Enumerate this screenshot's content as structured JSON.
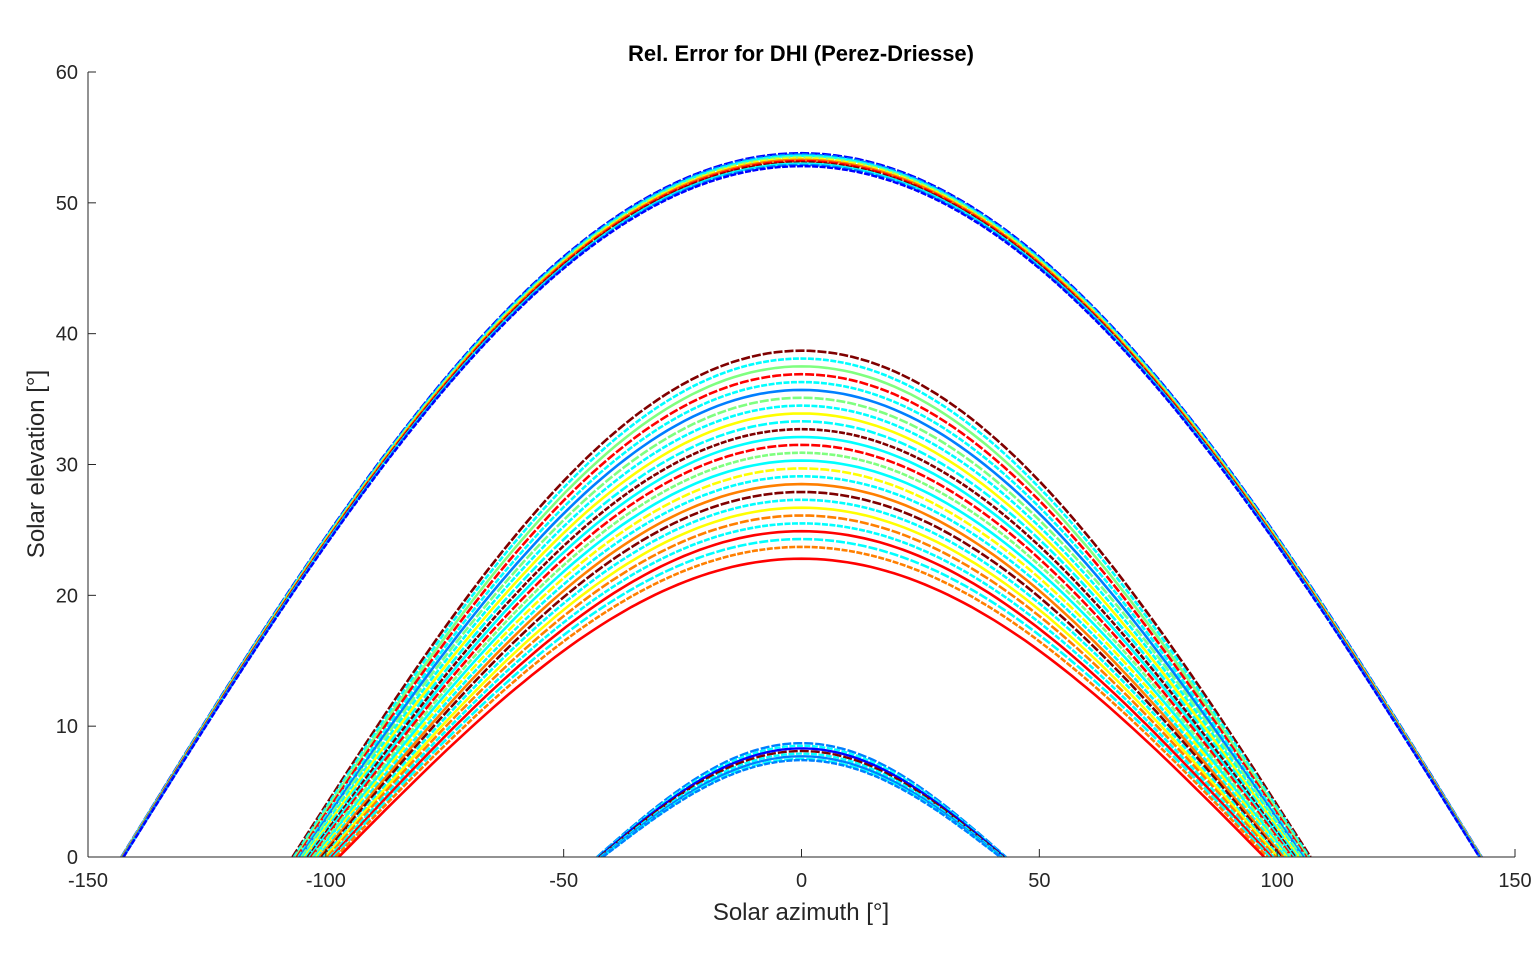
{
  "chart_data": {
    "type": "scatter",
    "title": "Rel. Error for DHI (Perez-Driesse)",
    "xlabel": "Solar azimuth [°]",
    "ylabel": "Solar elevation [°]",
    "xlim": [
      -150,
      150
    ],
    "ylim": [
      0,
      60
    ],
    "xticks": [
      -150,
      -100,
      -50,
      0,
      50,
      100,
      150
    ],
    "yticks": [
      0,
      10,
      20,
      30,
      40,
      50,
      60
    ],
    "grid": false,
    "colormap": "jet",
    "colors": [
      "#00007f",
      "#0000ff",
      "#007fff",
      "#00ffff",
      "#7fff7f",
      "#ffff00",
      "#ff7f00",
      "#ff0000",
      "#7f0000"
    ],
    "series": [
      {
        "max_elevation_range": [
          52.8,
          53.8
        ],
        "azimuth_end": 143,
        "bands": [
          {
            "peak": 53.8,
            "color": "#0000ff"
          },
          {
            "peak": 53.7,
            "color": "#007fff"
          },
          {
            "peak": 53.6,
            "color": "#00ffff"
          },
          {
            "peak": 53.5,
            "color": "#7fff7f"
          },
          {
            "peak": 53.4,
            "color": "#ffff00"
          },
          {
            "peak": 53.3,
            "color": "#ff7f00"
          },
          {
            "peak": 53.2,
            "color": "#ff0000"
          },
          {
            "peak": 53.1,
            "color": "#7f0000"
          },
          {
            "peak": 53.0,
            "color": "#00ffff"
          },
          {
            "peak": 52.9,
            "color": "#007fff"
          },
          {
            "peak": 52.8,
            "color": "#0000ff"
          }
        ]
      },
      {
        "max_elevation_range": [
          22.8,
          38.7
        ],
        "azimuth_end": 107,
        "bands": [
          {
            "peak": 38.7,
            "color": "#7f0000"
          },
          {
            "peak": 38.1,
            "color": "#00ffff"
          },
          {
            "peak": 37.5,
            "color": "#7fff7f"
          },
          {
            "peak": 36.9,
            "color": "#ff0000"
          },
          {
            "peak": 36.3,
            "color": "#00ffff"
          },
          {
            "peak": 35.7,
            "color": "#007fff"
          },
          {
            "peak": 35.1,
            "color": "#7fff7f"
          },
          {
            "peak": 34.5,
            "color": "#00ffff"
          },
          {
            "peak": 33.9,
            "color": "#ffff00"
          },
          {
            "peak": 33.3,
            "color": "#00ffff"
          },
          {
            "peak": 32.7,
            "color": "#7f0000"
          },
          {
            "peak": 32.1,
            "color": "#00ffff"
          },
          {
            "peak": 31.5,
            "color": "#ff0000"
          },
          {
            "peak": 30.9,
            "color": "#7fff7f"
          },
          {
            "peak": 30.3,
            "color": "#00ffff"
          },
          {
            "peak": 29.7,
            "color": "#ffff00"
          },
          {
            "peak": 29.1,
            "color": "#00ffff"
          },
          {
            "peak": 28.5,
            "color": "#ff7f00"
          },
          {
            "peak": 27.9,
            "color": "#7f0000"
          },
          {
            "peak": 27.3,
            "color": "#00ffff"
          },
          {
            "peak": 26.7,
            "color": "#ffff00"
          },
          {
            "peak": 26.1,
            "color": "#ff7f00"
          },
          {
            "peak": 25.5,
            "color": "#00ffff"
          },
          {
            "peak": 24.9,
            "color": "#ff0000"
          },
          {
            "peak": 24.3,
            "color": "#00ffff"
          },
          {
            "peak": 23.7,
            "color": "#ff7f00"
          },
          {
            "peak": 22.8,
            "color": "#ff0000"
          }
        ]
      },
      {
        "max_elevation_range": [
          7.4,
          8.7
        ],
        "azimuth_end": 43,
        "bands": [
          {
            "peak": 8.7,
            "color": "#007fff"
          },
          {
            "peak": 8.5,
            "color": "#00ffff"
          },
          {
            "peak": 8.3,
            "color": "#0000ff"
          },
          {
            "peak": 8.1,
            "color": "#7f0000"
          },
          {
            "peak": 7.9,
            "color": "#00ffff"
          },
          {
            "peak": 7.7,
            "color": "#007fff"
          },
          {
            "peak": 7.5,
            "color": "#00ffff"
          },
          {
            "peak": 7.4,
            "color": "#007fff"
          }
        ]
      }
    ]
  }
}
